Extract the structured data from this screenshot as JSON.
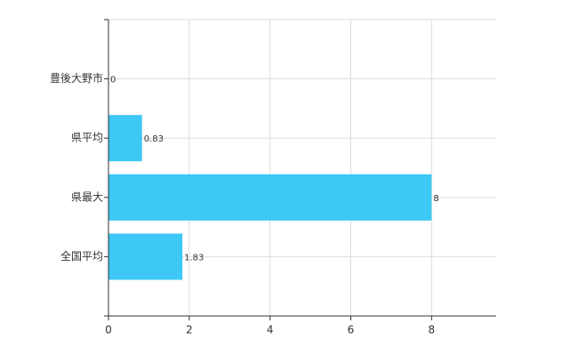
{
  "chart_data": {
    "type": "bar",
    "orientation": "horizontal",
    "categories": [
      "豊後大野市",
      "県平均",
      "県最大",
      "全国平均"
    ],
    "values": [
      0,
      0.83,
      8,
      1.83
    ],
    "color": "#3ec8f5",
    "xlim": [
      0,
      9.6
    ],
    "xticks": [
      0,
      2,
      4,
      6,
      8
    ],
    "grid": true
  }
}
